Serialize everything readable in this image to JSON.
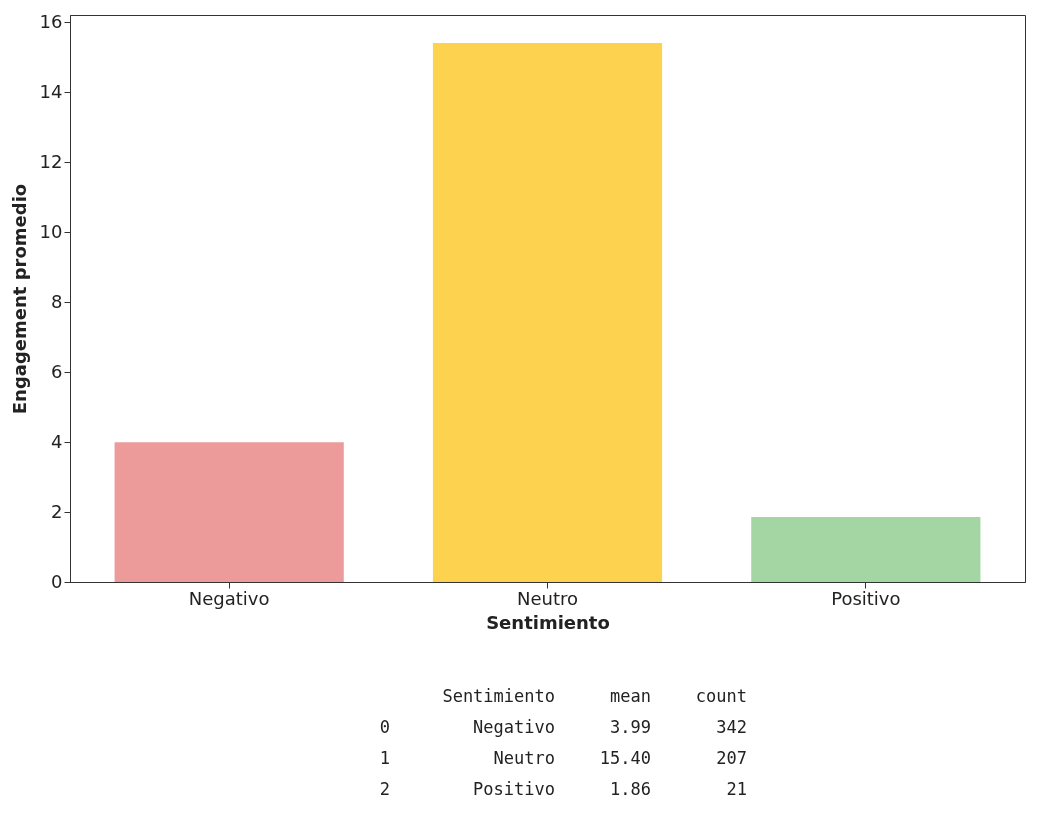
{
  "chart_data": {
    "type": "bar",
    "xlabel": "Sentimiento",
    "ylabel": "Engagement promedio",
    "categories": [
      "Negativo",
      "Neutro",
      "Positivo"
    ],
    "values": [
      3.99,
      15.4,
      1.86
    ],
    "colors": [
      "#ec9a9a",
      "#fdd24f",
      "#a3d6a3"
    ],
    "ylim": [
      0,
      16.2
    ],
    "yticks": [
      0,
      2,
      4,
      6,
      8,
      10,
      12,
      14,
      16
    ],
    "grid": false,
    "legend": false,
    "annotations": [
      "Sentimiento mean count",
      "0 Negativo 3.99 342",
      "1 Neutro 15.40 207",
      "2 Positivo 1.86 21"
    ]
  }
}
